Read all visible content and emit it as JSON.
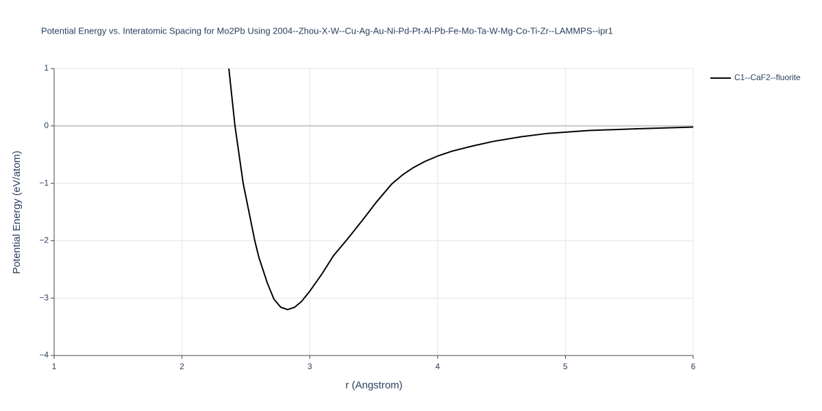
{
  "chart_data": {
    "type": "line",
    "title": "Potential Energy vs. Interatomic Spacing for Mo2Pb Using 2004--Zhou-X-W--Cu-Ag-Au-Ni-Pd-Pt-Al-Pb-Fe-Mo-Ta-W-Mg-Co-Ti-Zr--LAMMPS--ipr1",
    "x_label": "r (Angstrom)",
    "y_label": "Potential Energy (eV/atom)",
    "xlim": [
      1,
      6
    ],
    "ylim": [
      -4,
      1
    ],
    "xticks": [
      1,
      2,
      3,
      4,
      5,
      6
    ],
    "yticks": [
      {
        "value": -4,
        "label": "−4"
      },
      {
        "value": -3,
        "label": "−3"
      },
      {
        "value": -2,
        "label": "−2"
      },
      {
        "value": -1,
        "label": "−1"
      },
      0,
      1
    ],
    "grid": true,
    "legend": "right",
    "series": [
      {
        "name": "C1--CaF2--fluorite",
        "color": "#000000",
        "x": [
          2.367,
          2.415,
          2.479,
          2.57,
          2.602,
          2.667,
          2.72,
          2.774,
          2.827,
          2.881,
          2.935,
          3.0,
          3.095,
          3.186,
          3.31,
          3.417,
          3.524,
          3.642,
          3.728,
          3.808,
          3.9,
          4.006,
          4.113,
          4.274,
          4.435,
          4.65,
          4.864,
          5.185,
          5.56,
          6.0
        ],
        "values": [
          1,
          0.0,
          -1,
          -2,
          -2.29,
          -2.73,
          -3.02,
          -3.16,
          -3.2,
          -3.16,
          -3.06,
          -2.88,
          -2.58,
          -2.26,
          -1.93,
          -1.63,
          -1.32,
          -1.01,
          -0.85,
          -0.73,
          -0.62,
          -0.52,
          -0.44,
          -0.35,
          -0.27,
          -0.19,
          -0.13,
          -0.08,
          -0.05,
          -0.02
        ]
      }
    ]
  }
}
